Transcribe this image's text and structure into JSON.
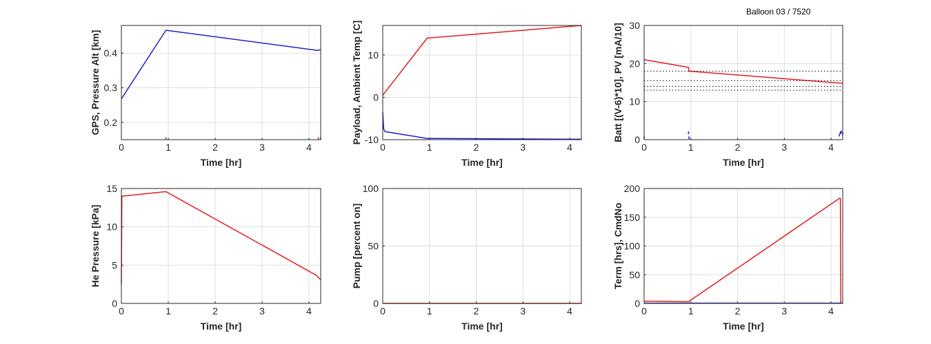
{
  "figure_title": "Balloon 03 / 7520",
  "colors": {
    "red": "#e41a1c",
    "blue": "#1f1fcf",
    "black": "#000000"
  },
  "chart_data": [
    {
      "type": "line",
      "xlabel": "Time [hr]",
      "ylabel": "GPS, Pressure Alt [km]",
      "xlim": [
        0,
        4.25
      ],
      "ylim": [
        0.15,
        0.48
      ],
      "xticks": [
        0,
        1,
        2,
        3,
        4
      ],
      "yticks": [
        0.2,
        0.3,
        0.4
      ],
      "grid": true,
      "series": [
        {
          "color": "blue",
          "style": "solid",
          "x": [
            0,
            0.95,
            4.18,
            4.25
          ],
          "y": [
            0.268,
            0.466,
            0.408,
            0.41
          ]
        },
        {
          "color": "red",
          "style": "marks",
          "x": [
            0.95,
            4.2,
            4.25
          ],
          "y": [
            0.153,
            0.153,
            0.153
          ]
        }
      ]
    },
    {
      "type": "line",
      "xlabel": "Time [hr]",
      "ylabel": "Payload, Ambient Temp [C]",
      "xlim": [
        0,
        4.25
      ],
      "ylim": [
        -10,
        17
      ],
      "xticks": [
        0,
        1,
        2,
        3,
        4
      ],
      "yticks": [
        -10,
        0,
        10
      ],
      "grid": true,
      "series": [
        {
          "color": "red",
          "style": "solid",
          "x": [
            0,
            0.95,
            4.25
          ],
          "y": [
            0.5,
            14,
            17
          ]
        },
        {
          "color": "blue",
          "style": "solid",
          "x": [
            0,
            0.02,
            0.05,
            0.95,
            4.25
          ],
          "y": [
            -3.5,
            -7.5,
            -8.1,
            -9.7,
            -9.9
          ]
        }
      ]
    },
    {
      "type": "line",
      "xlabel": "Time [hr]",
      "ylabel": "Batt [(V-6)*10], PV [mA/10]",
      "xlim": [
        0,
        4.25
      ],
      "ylim": [
        0,
        30
      ],
      "xticks": [
        0,
        1,
        2,
        3,
        4
      ],
      "yticks": [
        0,
        10,
        20,
        30
      ],
      "grid": true,
      "series": [
        {
          "color": "red",
          "style": "solid",
          "x": [
            0,
            0.95,
            0.96,
            4.25
          ],
          "y": [
            21,
            19,
            18,
            14.8
          ]
        },
        {
          "color": "black",
          "style": "dotted",
          "x": [
            0,
            4.25
          ],
          "y": [
            18,
            18
          ]
        },
        {
          "color": "black",
          "style": "dotted",
          "x": [
            0,
            4.25
          ],
          "y": [
            15.5,
            15.5
          ]
        },
        {
          "color": "black",
          "style": "dotted",
          "x": [
            0,
            4.25
          ],
          "y": [
            14,
            14
          ]
        },
        {
          "color": "black",
          "style": "dotted",
          "x": [
            0,
            4.25
          ],
          "y": [
            13,
            13
          ]
        },
        {
          "color": "blue",
          "style": "marks",
          "x": [
            0,
            0.95,
            0.96,
            4.18,
            4.2,
            4.22,
            4.25
          ],
          "y": [
            0.5,
            1.8,
            0.5,
            1.2,
            1.8,
            2.0,
            1.5
          ]
        }
      ]
    },
    {
      "type": "line",
      "xlabel": "Time [hr]",
      "ylabel": "He Pressure [kPa]",
      "xlim": [
        0,
        4.25
      ],
      "ylim": [
        0,
        15
      ],
      "xticks": [
        0,
        1,
        2,
        3,
        4
      ],
      "yticks": [
        0,
        5,
        10,
        15
      ],
      "grid": true,
      "series": [
        {
          "color": "red",
          "style": "solid",
          "x": [
            0,
            0.01,
            0.02,
            0.95,
            4.15,
            4.25
          ],
          "y": [
            2.5,
            14,
            14,
            14.6,
            3.7,
            3.1
          ]
        }
      ]
    },
    {
      "type": "line",
      "xlabel": "Time [hr]",
      "ylabel": "Pump [percent on]",
      "xlim": [
        0,
        4.25
      ],
      "ylim": [
        0,
        100
      ],
      "xticks": [
        0,
        1,
        2,
        3,
        4
      ],
      "yticks": [
        0,
        50,
        100
      ],
      "grid": true,
      "series": [
        {
          "color": "red",
          "style": "solid",
          "x": [
            0,
            4.25
          ],
          "y": [
            0,
            0
          ]
        }
      ]
    },
    {
      "type": "line",
      "xlabel": "Time [hr]",
      "ylabel": "Term [hrs], CmdNo",
      "xlim": [
        0,
        4.25
      ],
      "ylim": [
        0,
        200
      ],
      "xticks": [
        0,
        1,
        2,
        3,
        4
      ],
      "yticks": [
        0,
        50,
        100,
        150,
        200
      ],
      "grid": true,
      "series": [
        {
          "color": "red",
          "style": "solid",
          "x": [
            0,
            0.95,
            4.18,
            4.2,
            4.21
          ],
          "y": [
            4,
            3,
            183,
            183,
            0
          ]
        },
        {
          "color": "blue",
          "style": "solid",
          "x": [
            0,
            4.25
          ],
          "y": [
            0.5,
            0.5
          ]
        }
      ]
    }
  ]
}
